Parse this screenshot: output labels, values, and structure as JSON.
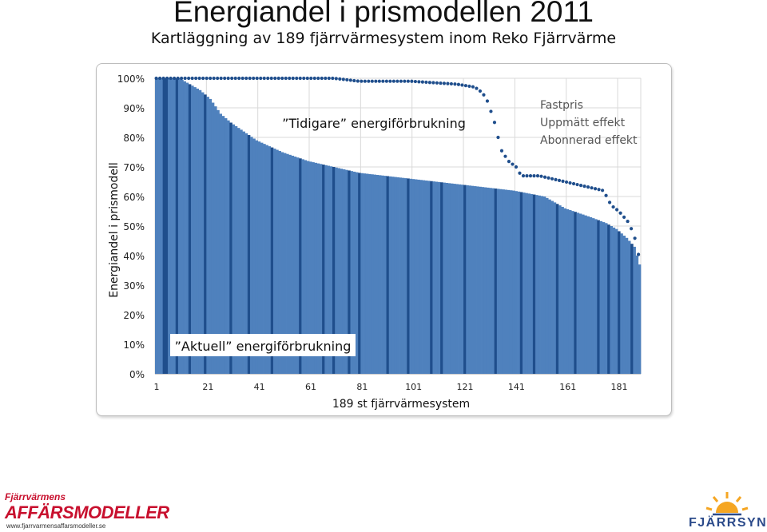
{
  "header": {
    "title": "Energiandel i prismodellen 2011",
    "subtitle": "Kartläggning av 189 fjärrvärmesystem inom Reko Fjärrvärme"
  },
  "chart_data": {
    "type": "bar",
    "ylabel": "Energiandel i prismodell",
    "xlabel": "189 st fjärrvärmesystem",
    "ylim": [
      0,
      100
    ],
    "yticks": [
      "0%",
      "10%",
      "20%",
      "30%",
      "40%",
      "50%",
      "60%",
      "70%",
      "80%",
      "90%",
      "100%"
    ],
    "xticks": [
      "1",
      "21",
      "41",
      "61",
      "81",
      "101",
      "121",
      "141",
      "161",
      "181"
    ],
    "n_systems": 189,
    "annotations": {
      "previous": "”Tidigare” energiförbrukning",
      "current": "”Aktuell” energiförbrukning",
      "legend_lines": [
        "Fastpris",
        "Uppmätt effekt",
        "Abonnerad effekt"
      ]
    },
    "series_bars": {
      "name": "Aktuell energiförbrukning",
      "description": "Sorted energy share per system (%)",
      "knots": [
        [
          1,
          100
        ],
        [
          10,
          100
        ],
        [
          14,
          98
        ],
        [
          18,
          96
        ],
        [
          22,
          93
        ],
        [
          26,
          88
        ],
        [
          30,
          85
        ],
        [
          40,
          79
        ],
        [
          50,
          75
        ],
        [
          60,
          72
        ],
        [
          70,
          70
        ],
        [
          80,
          68
        ],
        [
          90,
          67
        ],
        [
          100,
          66
        ],
        [
          120,
          64
        ],
        [
          130,
          63
        ],
        [
          140,
          62
        ],
        [
          146,
          61
        ],
        [
          152,
          60
        ],
        [
          160,
          56
        ],
        [
          170,
          53
        ],
        [
          176,
          51
        ],
        [
          180,
          49
        ],
        [
          184,
          46
        ],
        [
          187,
          43
        ],
        [
          189,
          37
        ]
      ],
      "dark_systems": [
        4,
        5,
        9,
        14,
        20,
        30,
        37,
        46,
        57,
        66,
        70,
        76,
        80,
        91,
        99,
        108,
        112,
        121,
        133,
        143,
        148,
        157,
        164,
        173,
        177,
        181,
        186
      ]
    },
    "series_dotted": {
      "name": "Tidigare energiförbrukning",
      "knots": [
        [
          1,
          100
        ],
        [
          50,
          100
        ],
        [
          70,
          100
        ],
        [
          80,
          99
        ],
        [
          100,
          99
        ],
        [
          118,
          98
        ],
        [
          125,
          97
        ],
        [
          128,
          95
        ],
        [
          130,
          92
        ],
        [
          133,
          84
        ],
        [
          135,
          76
        ],
        [
          138,
          72
        ],
        [
          141,
          70
        ],
        [
          143,
          67
        ],
        [
          150,
          67
        ],
        [
          160,
          65
        ],
        [
          170,
          63
        ],
        [
          175,
          62
        ],
        [
          178,
          57
        ],
        [
          181,
          55
        ],
        [
          185,
          51
        ],
        [
          188,
          44
        ],
        [
          189,
          38
        ]
      ]
    }
  },
  "logos": {
    "left_line1": "Fjärrvärmens",
    "left_line2": "AFFÄRSMODELLER",
    "left_url": "www.fjarrvarmensaffarsmodeller.se",
    "right_name": "FJÄRRSYN",
    "colors": {
      "red": "#c8102e",
      "blue": "#2b4a8a",
      "orange": "#f5a623"
    }
  },
  "colors": {
    "bar": "#4f81bd",
    "bar_dark": "#1f4e8c",
    "dotted": "#1f4e8c",
    "grid": "#d9d9d9"
  }
}
